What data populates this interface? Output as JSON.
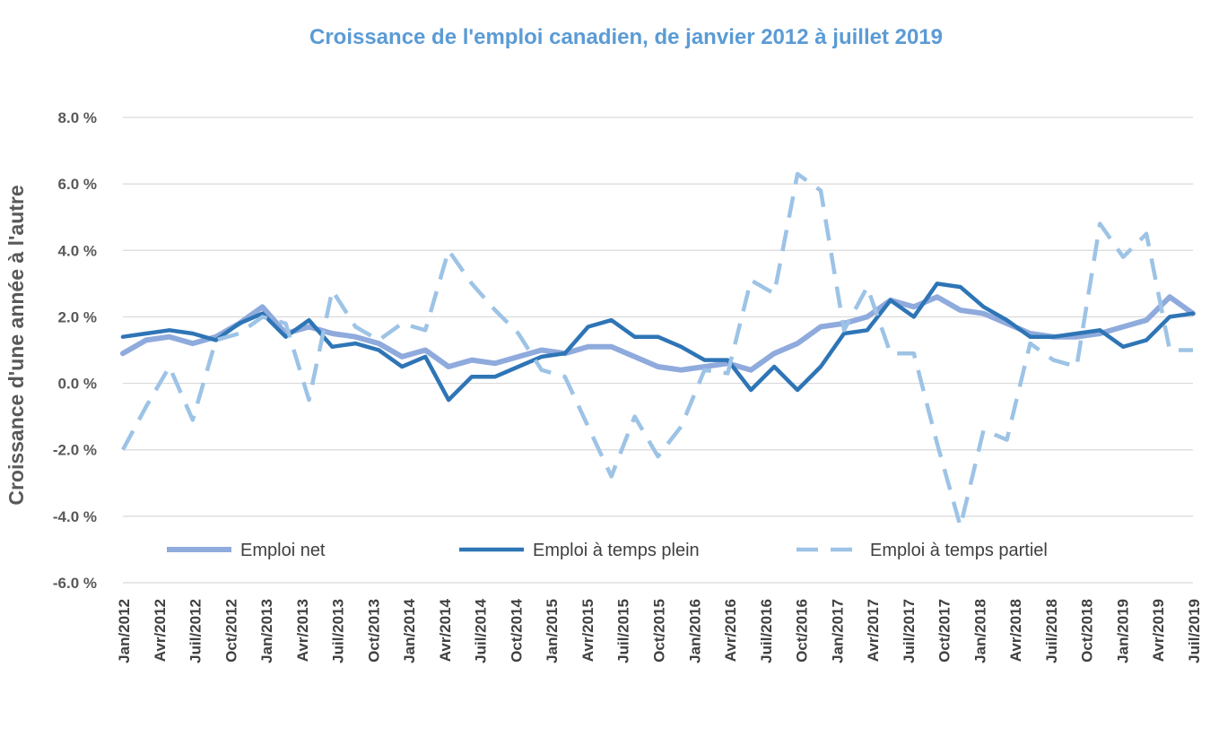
{
  "chart_data": {
    "type": "line",
    "title": "Croissance de l'emploi canadien, de janvier 2012 à juillet 2019",
    "xlabel": "",
    "ylabel": "Croissance d'une année à l'autre",
    "ylim": [
      -6,
      8
    ],
    "yticks": [
      -6,
      -4,
      -2,
      0,
      2,
      4,
      6,
      8
    ],
    "ytick_labels": [
      "-6.0 %",
      "-4.0 %",
      "-2.0 %",
      "0.0 %",
      "2.0 %",
      "4.0 %",
      "6.0 %",
      "8.0 %"
    ],
    "grid": true,
    "legend_position": "bottom-inside",
    "tick_labels": [
      "Jan/2012",
      "Avr/2012",
      "Juil/2012",
      "Oct/2012",
      "Jan/2013",
      "Avr/2013",
      "Juil/2013",
      "Oct/2013",
      "Jan/2014",
      "Avr/2014",
      "Juil/2014",
      "Oct/2014",
      "Jan/2015",
      "Avr/2015",
      "Juil/2015",
      "Oct/2015",
      "Jan/2016",
      "Avr/2016",
      "Juil/2016",
      "Oct/2016",
      "Jan/2017",
      "Avr/2017",
      "Juil/2017",
      "Oct/2017",
      "Jan/2018",
      "Avr/2018",
      "Juil/2018",
      "Oct/2018",
      "Jan/2019",
      "Avr/2019",
      "Juil/2019"
    ],
    "series": [
      {
        "name": "Emploi net",
        "color": "#8faadc",
        "style": "solid",
        "values": [
          0.9,
          1.3,
          1.4,
          1.2,
          1.4,
          1.8,
          2.3,
          1.5,
          1.7,
          1.5,
          1.4,
          1.2,
          0.8,
          1.0,
          0.5,
          0.7,
          0.6,
          0.8,
          1.0,
          0.9,
          1.1,
          1.1,
          0.8,
          0.5,
          0.4,
          0.5,
          0.6,
          0.4,
          0.9,
          1.2,
          1.7,
          1.8,
          2.0,
          2.5,
          2.3,
          2.6,
          2.2,
          2.1,
          1.8,
          1.5,
          1.4,
          1.4,
          1.5,
          1.7,
          1.9,
          2.6,
          2.1
        ]
      },
      {
        "name": "Emploi à temps plein",
        "color": "#2e75b6",
        "style": "solid",
        "values": [
          1.4,
          1.5,
          1.6,
          1.5,
          1.3,
          1.8,
          2.1,
          1.4,
          1.9,
          1.1,
          1.2,
          1.0,
          0.5,
          0.8,
          -0.5,
          0.2,
          0.2,
          0.5,
          0.8,
          0.9,
          1.7,
          1.9,
          1.4,
          1.4,
          1.1,
          0.7,
          0.7,
          -0.2,
          0.5,
          -0.2,
          0.5,
          1.5,
          1.6,
          2.5,
          2.0,
          3.0,
          2.9,
          2.3,
          1.9,
          1.4,
          1.4,
          1.5,
          1.6,
          1.1,
          1.3,
          2.0,
          2.1
        ]
      },
      {
        "name": "Emploi à temps partiel",
        "color": "#9dc3e6",
        "style": "dashed",
        "values": [
          -2.0,
          -0.7,
          0.5,
          -1.1,
          1.3,
          1.5,
          2.0,
          1.8,
          -0.5,
          2.8,
          1.7,
          1.3,
          1.8,
          1.6,
          4.0,
          3.0,
          2.2,
          1.5,
          0.4,
          0.2,
          -1.3,
          -2.8,
          -1.0,
          -2.2,
          -1.3,
          0.4,
          0.3,
          3.1,
          2.7,
          6.3,
          5.8,
          1.6,
          2.9,
          0.9,
          0.9,
          -1.8,
          -4.3,
          -1.4,
          -1.7,
          1.2,
          0.7,
          0.5,
          4.8,
          3.8,
          4.5,
          1.0,
          1.0
        ]
      }
    ]
  }
}
